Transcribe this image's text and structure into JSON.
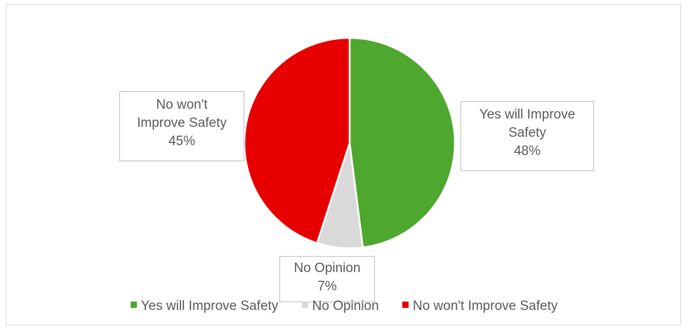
{
  "chart_data": {
    "type": "pie",
    "title": "",
    "slices": [
      {
        "name": "Yes will Improve Safety",
        "value": 48,
        "label": "48%",
        "color": "#4ea72e"
      },
      {
        "name": "No Opinion",
        "value": 7,
        "label": "7%",
        "color": "#d9d9d9"
      },
      {
        "name": "No won't Improve Safety",
        "value": 45,
        "label": "45%",
        "color": "#e60000"
      }
    ],
    "legend_position": "bottom",
    "start_angle_deg": 0,
    "direction": "clockwise"
  },
  "callouts": {
    "yes": {
      "line1": "Yes will Improve",
      "line2": "Safety",
      "pct": "48%"
    },
    "noop": {
      "line1": "No Opinion",
      "pct": "7%"
    },
    "no": {
      "line1": "No won't",
      "line2": "Improve Safety",
      "pct": "45%"
    }
  },
  "legend": {
    "items": [
      {
        "label": "Yes will Improve Safety",
        "color": "#4ea72e"
      },
      {
        "label": "No Opinion",
        "color": "#d9d9d9"
      },
      {
        "label": "No won't Improve Safety",
        "color": "#e60000"
      }
    ]
  }
}
